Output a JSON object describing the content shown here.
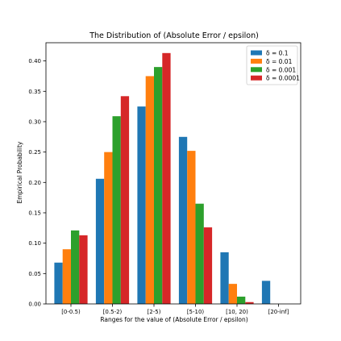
{
  "chart_data": {
    "type": "bar",
    "title": "The Distribution of (Absolute Error / epsilon)",
    "xlabel": "Ranges for the value of (Absolute Error / epsilon)",
    "ylabel": "Empirical Probability",
    "categories": [
      "[0-0.5)",
      "[0.5-2)",
      "[2-5)",
      "[5-10)",
      "[10, 20)",
      "[20-inf]"
    ],
    "ylim": [
      0,
      0.43
    ],
    "yticks": [
      "0.00",
      "0.05",
      "0.10",
      "0.15",
      "0.20",
      "0.25",
      "0.30",
      "0.35",
      "0.40"
    ],
    "grid": false,
    "legend_position": "top-right",
    "series": [
      {
        "name": "δ = 0.1",
        "color": "#1f77b4",
        "values": [
          0.068,
          0.206,
          0.325,
          0.275,
          0.085,
          0.038
        ]
      },
      {
        "name": "δ = 0.01",
        "color": "#ff7f0e",
        "values": [
          0.09,
          0.25,
          0.375,
          0.252,
          0.033,
          0.0
        ]
      },
      {
        "name": "δ = 0.001",
        "color": "#2ca02c",
        "values": [
          0.121,
          0.309,
          0.39,
          0.165,
          0.012,
          0.0
        ]
      },
      {
        "name": "δ = 0.0001",
        "color": "#d62728",
        "values": [
          0.113,
          0.342,
          0.413,
          0.126,
          0.003,
          0.0
        ]
      }
    ]
  }
}
